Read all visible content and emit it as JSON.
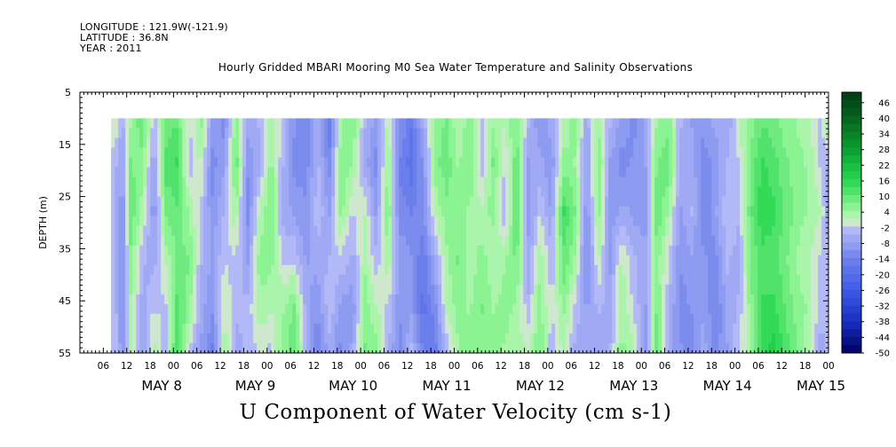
{
  "header": {
    "longitude": "LONGITUDE : 121.9W(-121.9)",
    "latitude": "LATITUDE : 36.8N",
    "year": "YEAR : 2011"
  },
  "chart_data": {
    "type": "heatmap",
    "title": "Hourly Gridded MBARI Mooring M0 Sea Water Temperature and Salinity Observations",
    "variable_label": "U Component of Water Velocity (cm s-1)",
    "ylabel": "DEPTH (m)",
    "y_axis": {
      "range": [
        5,
        55
      ],
      "inverted": true,
      "ticks": [
        5,
        15,
        25,
        35,
        45,
        55
      ]
    },
    "x_axis": {
      "range_hours": [
        "2011-05-07 00:00",
        "2011-05-15 00:00"
      ],
      "hour_ticks": [
        "06",
        "12",
        "18",
        "00",
        "06",
        "12",
        "18",
        "00",
        "06",
        "12",
        "18",
        "00",
        "06",
        "12",
        "18",
        "00",
        "06",
        "12",
        "18",
        "00",
        "06",
        "12",
        "18",
        "00",
        "06",
        "12",
        "18",
        "00",
        "06",
        "12",
        "18",
        "00"
      ],
      "day_labels": [
        "MAY  8",
        "MAY  9",
        "MAY 10",
        "MAY 11",
        "MAY 12",
        "MAY 13",
        "MAY 14",
        "MAY 15"
      ]
    },
    "data_extent": {
      "time_start": "2011-05-07 08:00",
      "time_end": "2011-05-15 00:00",
      "depth_top": 10,
      "depth_bottom": 55
    },
    "colorbar": {
      "labels": [
        "46",
        "40",
        "34",
        "28",
        "22",
        "16",
        "10",
        "4",
        "-2",
        "-8",
        "-14",
        "-20",
        "-26",
        "-32",
        "-38",
        "-44",
        "-50"
      ],
      "range": [
        -50,
        50
      ],
      "step": 3
    },
    "columns": [
      {
        "t": "2011-05-07 09:00",
        "u": [
          2,
          -4,
          -4,
          -3,
          -3,
          -2
        ]
      },
      {
        "t": "2011-05-07 11:00",
        "u": [
          -5,
          -8,
          -10,
          -12,
          -12,
          -10
        ]
      },
      {
        "t": "2011-05-07 13:00",
        "u": [
          4,
          8,
          10,
          6,
          4,
          2
        ]
      },
      {
        "t": "2011-05-07 16:00",
        "u": [
          10,
          6,
          3,
          -4,
          -6,
          -8
        ]
      },
      {
        "t": "2011-05-07 19:00",
        "u": [
          -3,
          -8,
          -10,
          -6,
          -2,
          4
        ]
      },
      {
        "t": "2011-05-07 22:00",
        "u": [
          8,
          12,
          8,
          2,
          -2,
          -4
        ]
      },
      {
        "t": "2011-05-08 01:00",
        "u": [
          10,
          14,
          10,
          8,
          12,
          14
        ]
      },
      {
        "t": "2011-05-08 04:00",
        "u": [
          -2,
          -4,
          4,
          8,
          6,
          -3
        ]
      },
      {
        "t": "2011-05-08 07:00",
        "u": [
          6,
          2,
          -2,
          -4,
          -6,
          -8
        ]
      },
      {
        "t": "2011-05-08 10:00",
        "u": [
          -8,
          -12,
          -10,
          -8,
          -10,
          -14
        ]
      },
      {
        "t": "2011-05-08 13:00",
        "u": [
          -12,
          -8,
          -4,
          -2,
          2,
          4
        ]
      },
      {
        "t": "2011-05-08 16:00",
        "u": [
          6,
          10,
          4,
          -2,
          -4,
          -6
        ]
      },
      {
        "t": "2011-05-08 19:00",
        "u": [
          -6,
          -10,
          -12,
          -8,
          -4,
          -3
        ]
      },
      {
        "t": "2011-05-08 22:00",
        "u": [
          -4,
          -6,
          2,
          6,
          4,
          -2
        ]
      },
      {
        "t": "2011-05-09 01:00",
        "u": [
          4,
          6,
          8,
          6,
          2,
          -2
        ]
      },
      {
        "t": "2011-05-09 04:00",
        "u": [
          -2,
          -4,
          -6,
          -2,
          4,
          6
        ]
      },
      {
        "t": "2011-05-09 07:00",
        "u": [
          -10,
          -12,
          -8,
          -2,
          8,
          10
        ]
      },
      {
        "t": "2011-05-09 10:00",
        "u": [
          -14,
          -12,
          -10,
          -8,
          -6,
          -4
        ]
      },
      {
        "t": "2011-05-09 13:00",
        "u": [
          -6,
          -4,
          -2,
          -6,
          -10,
          -14
        ]
      },
      {
        "t": "2011-05-09 16:00",
        "u": [
          -16,
          -12,
          -8,
          -4,
          -2,
          -6
        ]
      },
      {
        "t": "2011-05-09 19:00",
        "u": [
          4,
          8,
          6,
          -2,
          -8,
          -12
        ]
      },
      {
        "t": "2011-05-09 22:00",
        "u": [
          8,
          4,
          -2,
          -6,
          -10,
          -6
        ]
      },
      {
        "t": "2011-05-10 01:00",
        "u": [
          -4,
          -6,
          2,
          4,
          6,
          8
        ]
      },
      {
        "t": "2011-05-10 04:00",
        "u": [
          -8,
          -12,
          -8,
          -4,
          2,
          6
        ]
      },
      {
        "t": "2011-05-10 07:00",
        "u": [
          2,
          6,
          8,
          4,
          -2,
          -4
        ]
      },
      {
        "t": "2011-05-10 10:00",
        "u": [
          -10,
          -14,
          -12,
          -8,
          -10,
          -12
        ]
      },
      {
        "t": "2011-05-10 13:00",
        "u": [
          -16,
          -18,
          -14,
          -10,
          -8,
          -4
        ]
      },
      {
        "t": "2011-05-10 16:00",
        "u": [
          -6,
          -10,
          -12,
          -16,
          -18,
          -14
        ]
      },
      {
        "t": "2011-05-10 19:00",
        "u": [
          4,
          6,
          2,
          -6,
          -12,
          -16
        ]
      },
      {
        "t": "2011-05-10 22:00",
        "u": [
          8,
          10,
          6,
          4,
          2,
          -4
        ]
      },
      {
        "t": "2011-05-11 01:00",
        "u": [
          2,
          4,
          6,
          8,
          6,
          4
        ]
      },
      {
        "t": "2011-05-11 04:00",
        "u": [
          6,
          8,
          4,
          2,
          4,
          6
        ]
      },
      {
        "t": "2011-05-11 07:00",
        "u": [
          -2,
          -4,
          2,
          6,
          8,
          4
        ]
      },
      {
        "t": "2011-05-11 10:00",
        "u": [
          4,
          8,
          6,
          2,
          4,
          6
        ]
      },
      {
        "t": "2011-05-11 13:00",
        "u": [
          2,
          -2,
          -4,
          4,
          6,
          4
        ]
      },
      {
        "t": "2011-05-11 16:00",
        "u": [
          8,
          10,
          12,
          8,
          4,
          2
        ]
      },
      {
        "t": "2011-05-11 19:00",
        "u": [
          -4,
          -8,
          -10,
          -6,
          -4,
          2
        ]
      },
      {
        "t": "2011-05-11 22:00",
        "u": [
          -10,
          -6,
          -2,
          4,
          6,
          8
        ]
      },
      {
        "t": "2011-05-12 01:00",
        "u": [
          -6,
          -10,
          -8,
          -4,
          -2,
          -4
        ]
      },
      {
        "t": "2011-05-12 04:00",
        "u": [
          2,
          6,
          14,
          10,
          6,
          2
        ]
      },
      {
        "t": "2011-05-12 07:00",
        "u": [
          6,
          4,
          8,
          4,
          -2,
          -6
        ]
      },
      {
        "t": "2011-05-12 10:00",
        "u": [
          -6,
          -8,
          -10,
          -12,
          -8,
          -6
        ]
      },
      {
        "t": "2011-05-12 13:00",
        "u": [
          4,
          8,
          6,
          2,
          -4,
          -8
        ]
      },
      {
        "t": "2011-05-12 16:00",
        "u": [
          -4,
          -8,
          -10,
          -8,
          -6,
          -4
        ]
      },
      {
        "t": "2011-05-12 19:00",
        "u": [
          -8,
          -12,
          -6,
          2,
          4,
          6
        ]
      },
      {
        "t": "2011-05-12 22:00",
        "u": [
          -12,
          -10,
          -8,
          -4,
          -2,
          2
        ]
      },
      {
        "t": "2011-05-13 01:00",
        "u": [
          -6,
          -8,
          -10,
          -6,
          -8,
          -10
        ]
      },
      {
        "t": "2011-05-13 04:00",
        "u": [
          4,
          8,
          10,
          6,
          8,
          10
        ]
      },
      {
        "t": "2011-05-13 07:00",
        "u": [
          6,
          10,
          4,
          -2,
          -4,
          -6
        ]
      },
      {
        "t": "2011-05-13 10:00",
        "u": [
          -4,
          -6,
          -8,
          -10,
          -12,
          -10
        ]
      },
      {
        "t": "2011-05-13 13:00",
        "u": [
          -8,
          -6,
          -4,
          -8,
          -10,
          -12
        ]
      },
      {
        "t": "2011-05-13 16:00",
        "u": [
          -10,
          -12,
          -14,
          -10,
          -8,
          -6
        ]
      },
      {
        "t": "2011-05-13 19:00",
        "u": [
          -6,
          -10,
          -8,
          -12,
          -14,
          -12
        ]
      },
      {
        "t": "2011-05-13 22:00",
        "u": [
          -8,
          -4,
          -2,
          -4,
          -6,
          -8
        ]
      },
      {
        "t": "2011-05-14 01:00",
        "u": [
          2,
          -2,
          -4,
          -6,
          -4,
          -2
        ]
      },
      {
        "t": "2011-05-14 04:00",
        "u": [
          6,
          8,
          10,
          8,
          6,
          4
        ]
      },
      {
        "t": "2011-05-14 07:00",
        "u": [
          10,
          14,
          16,
          12,
          14,
          16
        ]
      },
      {
        "t": "2011-05-14 10:00",
        "u": [
          8,
          12,
          14,
          12,
          14,
          18
        ]
      },
      {
        "t": "2011-05-14 13:00",
        "u": [
          6,
          8,
          10,
          8,
          10,
          12
        ]
      },
      {
        "t": "2011-05-14 16:00",
        "u": [
          4,
          6,
          6,
          4,
          6,
          8
        ]
      },
      {
        "t": "2011-05-14 19:00",
        "u": [
          2,
          4,
          4,
          2,
          4,
          2
        ]
      },
      {
        "t": "2011-05-14 22:00",
        "u": [
          -4,
          -2,
          2,
          -2,
          -4,
          -6
        ]
      },
      {
        "t": "2011-05-15 00:00",
        "u": [
          8,
          -6,
          -8,
          -4,
          -2,
          -4
        ]
      }
    ],
    "column_depths": [
      10,
      19,
      28,
      37,
      46,
      55
    ]
  }
}
